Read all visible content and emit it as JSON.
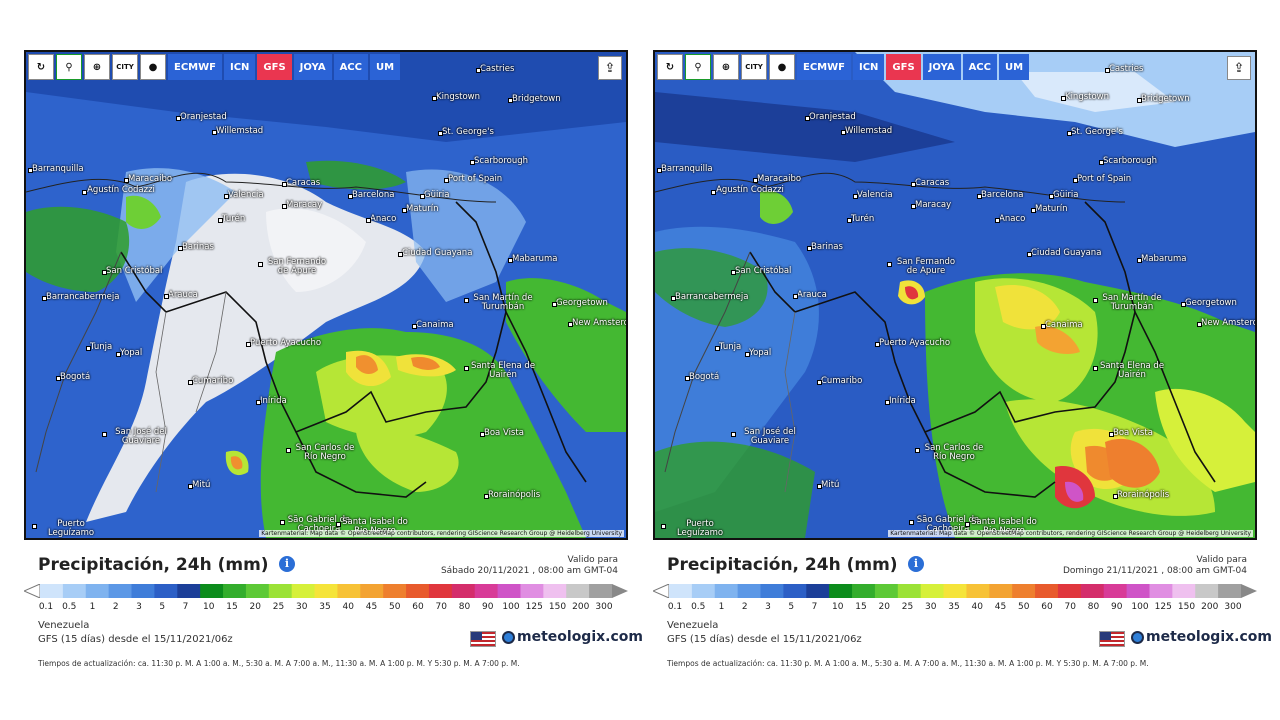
{
  "toolbar": {
    "buttons": [
      {
        "name": "refresh-icon",
        "glyph": "↻"
      },
      {
        "name": "location-pin-icon",
        "glyph": "⚲"
      },
      {
        "name": "zoom-icon",
        "glyph": "⊕"
      },
      {
        "name": "city-toggle-icon",
        "glyph": "CITY"
      },
      {
        "name": "dot-icon",
        "glyph": "●"
      }
    ],
    "models": [
      "ECMWF",
      "ICN",
      "GFS",
      "JOYA",
      "ACC",
      "UM"
    ],
    "active_model": "GFS",
    "share_glyph": "⇪"
  },
  "legend": {
    "labels": [
      "0.1",
      "0.5",
      "1",
      "2",
      "3",
      "5",
      "7",
      "10",
      "15",
      "20",
      "25",
      "30",
      "35",
      "40",
      "45",
      "50",
      "60",
      "70",
      "80",
      "90",
      "100",
      "125",
      "150",
      "200",
      "300"
    ],
    "colors": [
      "#cfe4fb",
      "#a7cdf6",
      "#7fb3ef",
      "#5c98e6",
      "#3f7dd9",
      "#2c5fc6",
      "#1c3f99",
      "#0c8c1c",
      "#33ad2c",
      "#5dc936",
      "#9be236",
      "#d6f03a",
      "#f5e43a",
      "#f7c236",
      "#f3a332",
      "#ee7f2e",
      "#e85a2c",
      "#e0363d",
      "#d42d6b",
      "#d83b98",
      "#cf54c7",
      "#e08ee2",
      "#efc0ef",
      "#c8c8c8",
      "#a0a0a0"
    ]
  },
  "attribution": "Kartenmaterial: Map data © OpenStreetMap contributors, rendering GIScience Research Group @ Heidelberg University",
  "brand": "meteologix.com",
  "panels": [
    {
      "title": "Precipitación, 24h (mm)",
      "valid_label": "Valido para",
      "valid_date": "Sábado 20/11/2021 , 08:00 am GMT-04",
      "region": "Venezuela",
      "run": "GFS (15 días) desde el 15/11/2021/06z",
      "update": "Tiempos de actualización: ca. 11:30 p. M. A 1:00 a. M., 5:30 a. M. A 7:00 a. M., 11:30 a. M. A 1:00 p. M. Y 5:30 p. M. A 7:00 p. M."
    },
    {
      "title": "Precipitación, 24h (mm)",
      "valid_label": "Valido para",
      "valid_date": "Domingo 21/11/2021 , 08:00 am GMT-04",
      "region": "Venezuela",
      "run": "GFS (15 días) desde el 15/11/2021/06z",
      "update": "Tiempos de actualización: ca. 11:30 p. M. A 1:00 a. M., 5:30 a. M. A 7:00 a. M., 11:30 a. M. A 1:00 p. M. Y 5:30 p. M. A 7:00 p. M."
    }
  ],
  "cities": [
    "Castries",
    "Kingstown",
    "Bridgetown",
    "Oranjestad",
    "Willemstad",
    "St. George's",
    "Scarborough",
    "Barranquilla",
    "Maracaibo",
    "Caracas",
    "Port of Spain",
    "Valencia",
    "Maracay",
    "Barcelona",
    "Güiria",
    "Agustín Codazzi",
    "Anaco",
    "Maturín",
    "Turén",
    "Barinas",
    "Ciudad Guayana",
    "Mabaruma",
    "San Cristóbal",
    "San Fernando de Apure",
    "Barrancabermeja",
    "Arauca",
    "San Martín de Turumbán",
    "Georgetown",
    "New Amsterdam",
    "Canaima",
    "Puerto Ayacucho",
    "Tunja",
    "Yopal",
    "Santa Elena de Uairén",
    "Bogotá",
    "Cumaribo",
    "Inírida",
    "San José del Guaviare",
    "Boa Vista",
    "San Carlos de Río Negro",
    "Mitú",
    "Rorainópolis",
    "Puerto Leguízamo",
    "São Gabriel da Cachoeira",
    "Santa Isabel do Rio Negro"
  ]
}
